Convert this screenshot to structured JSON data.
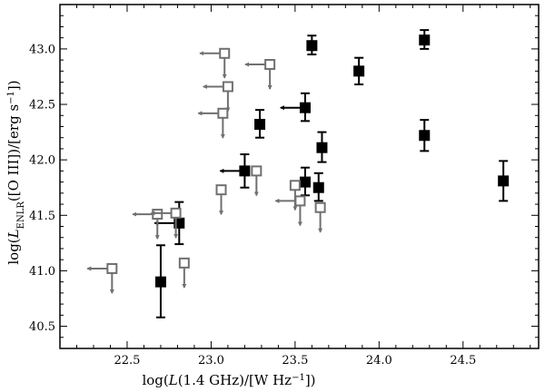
{
  "chart_data": {
    "type": "scatter",
    "xlabel": "log(L(1.4 GHz)/[W Hz^-1])",
    "ylabel": "log(L_ENLR([O III])/[erg s^-1])",
    "xlim": [
      22.1,
      24.95
    ],
    "ylim": [
      40.3,
      43.4
    ],
    "x_ticks": [
      "22.5",
      "23.0",
      "23.5",
      "24.0",
      "24.5"
    ],
    "y_ticks": [
      "40.5",
      "41.0",
      "41.5",
      "42.0",
      "42.5",
      "43.0"
    ],
    "grid": false,
    "colors": {
      "detection": "#000000",
      "upper_limit": "#707070"
    },
    "series": [
      {
        "marker": "filled-square",
        "points": [
          {
            "x": 22.7,
            "y": 40.9,
            "yerr_lo": 0.32,
            "yerr_hi": 0.33
          },
          {
            "x": 22.81,
            "y": 41.43,
            "yerr_lo": 0.19,
            "yerr_hi": 0.19,
            "x_upper_limit": true
          },
          {
            "x": 23.2,
            "y": 41.9,
            "yerr_lo": 0.15,
            "yerr_hi": 0.15,
            "x_upper_limit": true
          },
          {
            "x": 23.29,
            "y": 42.32,
            "yerr_lo": 0.12,
            "yerr_hi": 0.13
          },
          {
            "x": 23.56,
            "y": 41.8,
            "yerr_lo": 0.12,
            "yerr_hi": 0.13
          },
          {
            "x": 23.56,
            "y": 42.47,
            "yerr_lo": 0.12,
            "yerr_hi": 0.13,
            "x_upper_limit": true
          },
          {
            "x": 23.6,
            "y": 43.03,
            "yerr_lo": 0.08,
            "yerr_hi": 0.09
          },
          {
            "x": 23.64,
            "y": 41.75,
            "yerr_lo": 0.12,
            "yerr_hi": 0.13
          },
          {
            "x": 23.66,
            "y": 42.11,
            "yerr_lo": 0.13,
            "yerr_hi": 0.14
          },
          {
            "x": 23.88,
            "y": 42.8,
            "yerr_lo": 0.12,
            "yerr_hi": 0.12
          },
          {
            "x": 24.27,
            "y": 42.22,
            "yerr_lo": 0.14,
            "yerr_hi": 0.14
          },
          {
            "x": 24.27,
            "y": 43.08,
            "yerr_lo": 0.08,
            "yerr_hi": 0.09
          },
          {
            "x": 24.74,
            "y": 41.81,
            "yerr_lo": 0.18,
            "yerr_hi": 0.18
          }
        ]
      },
      {
        "marker": "open-square",
        "points": [
          {
            "x": 22.41,
            "y": 41.02,
            "x_upper_limit": true,
            "y_upper_limit": true
          },
          {
            "x": 22.68,
            "y": 41.51,
            "x_upper_limit": true,
            "y_upper_limit": true
          },
          {
            "x": 22.79,
            "y": 41.52,
            "x_upper_limit": true,
            "y_upper_limit": true
          },
          {
            "x": 22.84,
            "y": 41.07,
            "y_upper_limit": true
          },
          {
            "x": 23.06,
            "y": 41.73,
            "y_upper_limit": true
          },
          {
            "x": 23.07,
            "y": 42.42,
            "x_upper_limit": true,
            "y_upper_limit": true
          },
          {
            "x": 23.08,
            "y": 42.96,
            "x_upper_limit": true,
            "y_upper_limit": true
          },
          {
            "x": 23.1,
            "y": 42.66,
            "x_upper_limit": true,
            "y_upper_limit": true
          },
          {
            "x": 23.27,
            "y": 41.9,
            "y_upper_limit": true
          },
          {
            "x": 23.35,
            "y": 42.86,
            "x_upper_limit": true,
            "y_upper_limit": true
          },
          {
            "x": 23.5,
            "y": 41.77,
            "y_upper_limit": true
          },
          {
            "x": 23.53,
            "y": 41.63,
            "x_upper_limit": true,
            "y_upper_limit": true
          },
          {
            "x": 23.65,
            "y": 41.57,
            "y_upper_limit": true
          }
        ]
      }
    ]
  }
}
